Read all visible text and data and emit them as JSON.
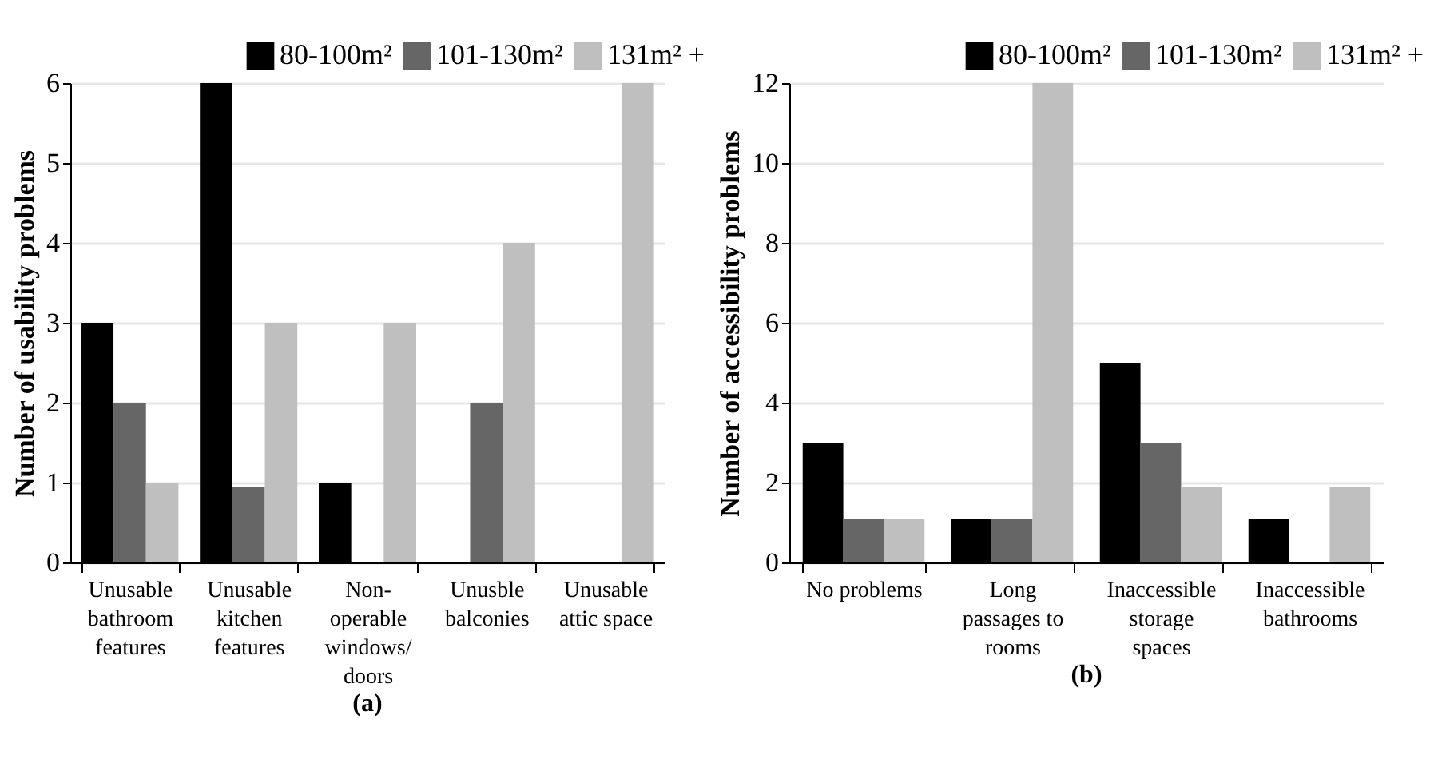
{
  "chart_data": [
    {
      "type": "bar",
      "title": "(a)",
      "ylabel": "Number of usability problems",
      "categories": [
        "Unusable bathroom features",
        "Unusable kitchen features",
        "Non-operable windows/doors",
        "Unusble balconies",
        "Unusable attic space"
      ],
      "series": [
        {
          "name": "80-100m²",
          "color": "#000000",
          "values": [
            3,
            6,
            1,
            0,
            0
          ]
        },
        {
          "name": "101-130m²",
          "color": "#666666",
          "values": [
            2,
            0.95,
            0,
            2,
            0
          ]
        },
        {
          "name": "131m² +",
          "color": "#bfbfbf",
          "values": [
            1,
            3,
            3,
            4,
            6
          ]
        }
      ],
      "ylim": [
        0,
        6
      ],
      "yticks": [
        0,
        1,
        2,
        3,
        4,
        5,
        6
      ],
      "grid": "y",
      "legend": "top right"
    },
    {
      "type": "bar",
      "title": "(b)",
      "ylabel": "Number of accessibility problems",
      "categories": [
        "No problems",
        "Long passages to rooms",
        "Inaccessible storage spaces",
        "Inaccessible bathrooms"
      ],
      "series": [
        {
          "name": "80-100m²",
          "color": "#000000",
          "values": [
            3,
            1.1,
            5,
            1.1
          ]
        },
        {
          "name": "101-130m²",
          "color": "#666666",
          "values": [
            1.1,
            1.1,
            3,
            0
          ]
        },
        {
          "name": "131m² +",
          "color": "#bfbfbf",
          "values": [
            1.1,
            12,
            1.9,
            1.9
          ]
        }
      ],
      "ylim": [
        0,
        12
      ],
      "yticks": [
        0,
        2,
        4,
        6,
        8,
        10,
        12
      ],
      "grid": "y",
      "legend": "top right"
    }
  ]
}
